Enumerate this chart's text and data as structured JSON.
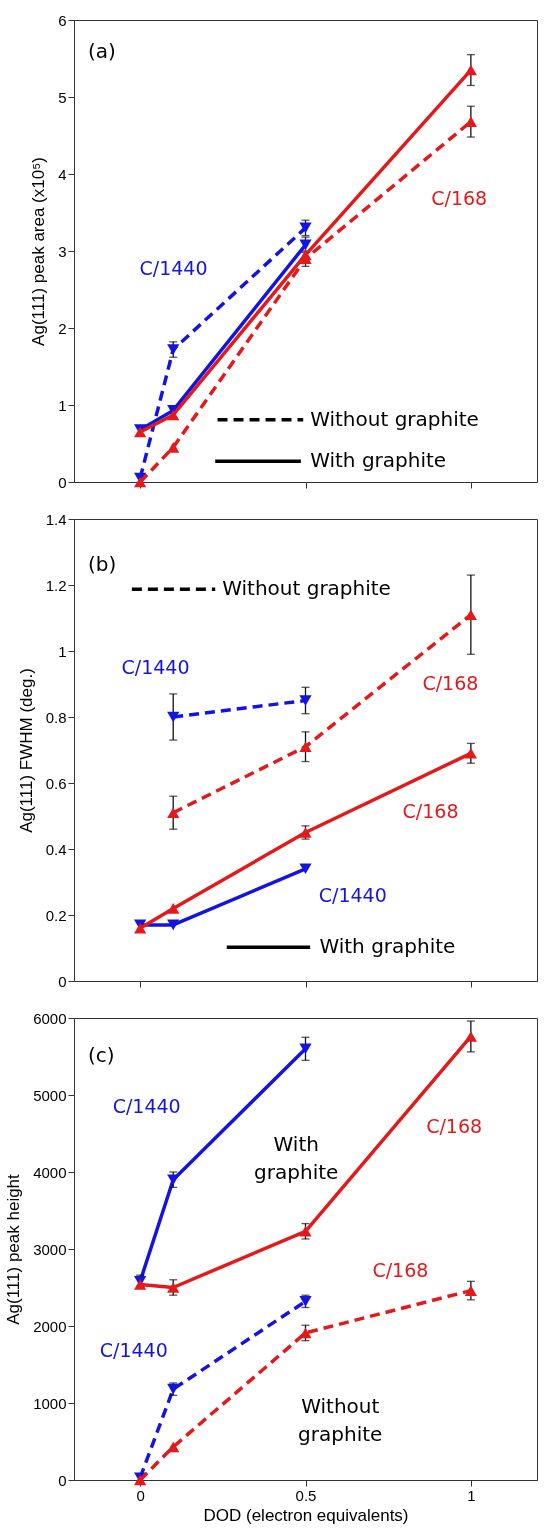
{
  "chart_data": [
    {
      "type": "line",
      "ylabel": "Ag(111) peak area (x10⁵)",
      "xlim": [
        -0.2,
        1.2
      ],
      "xticks": [
        0,
        0.5,
        1
      ],
      "ylim": [
        0,
        6
      ],
      "yticks": [
        0,
        1,
        2,
        3,
        4,
        5,
        6
      ],
      "tick_labels": "y",
      "annotations": [
        "(a)",
        "Without graphite",
        "With graphite"
      ],
      "series": [
        {
          "name": "C/1440",
          "color": "#1414e0",
          "line_style": "dashed",
          "marker": "triangle-down",
          "x": [
            0,
            0.1,
            0.5
          ],
          "values": [
            0.05,
            1.72,
            3.3
          ],
          "errors": [
            null,
            0.1,
            0.1
          ]
        },
        {
          "color": "#1414e0",
          "line_style": "solid",
          "marker": "triangle-down",
          "x": [
            0,
            0.1,
            0.5
          ],
          "values": [
            0.68,
            0.93,
            3.08
          ],
          "errors": [
            null,
            null,
            0.1
          ]
        },
        {
          "name": "C/168",
          "color": "#e31a1c",
          "line_style": "dashed",
          "marker": "triangle-up",
          "x": [
            0,
            0.1,
            0.5,
            1
          ],
          "values": [
            0,
            0.45,
            2.9,
            4.68
          ],
          "errors": [
            null,
            null,
            0.1,
            0.2
          ]
        },
        {
          "color": "#e31a1c",
          "line_style": "solid",
          "marker": "triangle-up",
          "x": [
            0,
            0.1,
            0.5,
            1
          ],
          "values": [
            0.65,
            0.87,
            2.95,
            5.35
          ],
          "errors": [
            null,
            null,
            null,
            0.2
          ]
        }
      ]
    },
    {
      "type": "line",
      "ylabel": "Ag(111) FWHM (deg.)",
      "xlim": [
        -0.2,
        1.2
      ],
      "xticks": [
        0,
        0.5,
        1
      ],
      "ylim": [
        0,
        1.4
      ],
      "yticks": [
        0,
        0.2,
        0.4,
        0.6,
        0.8,
        1,
        1.2,
        1.4
      ],
      "tick_labels": "y",
      "annotations": [
        "(b)",
        "Without graphite",
        "With graphite"
      ],
      "series": [
        {
          "name": "C/1440",
          "color": "#1414e0",
          "line_style": "dashed",
          "marker": "triangle-down",
          "x": [
            0.1,
            0.5
          ],
          "values": [
            0.8,
            0.85
          ],
          "errors": [
            0.07,
            0.04
          ]
        },
        {
          "name": "C/1440",
          "color": "#1414e0",
          "line_style": "solid",
          "marker": "triangle-down",
          "x": [
            0,
            0.1,
            0.5
          ],
          "values": [
            0.17,
            0.17,
            0.34
          ],
          "errors": [
            null,
            null,
            null
          ]
        },
        {
          "name": "C/168",
          "color": "#e31a1c",
          "line_style": "dashed",
          "marker": "triangle-up",
          "x": [
            0.1,
            0.5,
            1
          ],
          "values": [
            0.51,
            0.71,
            1.11
          ],
          "errors": [
            0.05,
            0.045,
            0.12
          ]
        },
        {
          "name": "C/168",
          "color": "#e31a1c",
          "line_style": "solid",
          "marker": "triangle-up",
          "x": [
            0,
            0.1,
            0.5,
            1
          ],
          "values": [
            0.16,
            0.22,
            0.45,
            0.69
          ],
          "errors": [
            null,
            null,
            0.02,
            0.03
          ]
        }
      ]
    },
    {
      "type": "line",
      "xlabel": "DOD (electron equivalents)",
      "ylabel": "Ag(111) peak height",
      "xlim": [
        -0.2,
        1.2
      ],
      "xticks": [
        0,
        0.5,
        1
      ],
      "ylim": [
        0,
        6000
      ],
      "yticks": [
        0,
        1000,
        2000,
        3000,
        4000,
        5000,
        6000
      ],
      "annotations": [
        "(c)",
        "With\ngraphite",
        "Without\ngraphite"
      ],
      "series": [
        {
          "name": "C/1440",
          "color": "#1414e0",
          "line_style": "dashed",
          "marker": "triangle-down",
          "x": [
            0,
            0.1,
            0.5
          ],
          "values": [
            30,
            1180,
            2320
          ],
          "errors": [
            null,
            80,
            80
          ]
        },
        {
          "name": "C/1440",
          "color": "#1414e0",
          "line_style": "solid",
          "marker": "triangle-down",
          "x": [
            0,
            0.1,
            0.5
          ],
          "values": [
            2580,
            3900,
            5600
          ],
          "errors": [
            80,
            100,
            150
          ]
        },
        {
          "name": "C/168",
          "color": "#e31a1c",
          "line_style": "dashed",
          "marker": "triangle-up",
          "x": [
            0,
            0.1,
            0.5,
            1
          ],
          "values": [
            0,
            430,
            1910,
            2460
          ],
          "errors": [
            null,
            null,
            100,
            120
          ]
        },
        {
          "name": "C/168",
          "color": "#e31a1c",
          "line_style": "solid",
          "marker": "triangle-up",
          "x": [
            0,
            0.1,
            0.5,
            1
          ],
          "values": [
            2540,
            2500,
            3230,
            5760
          ],
          "errors": [
            null,
            100,
            100,
            200
          ]
        }
      ]
    }
  ]
}
